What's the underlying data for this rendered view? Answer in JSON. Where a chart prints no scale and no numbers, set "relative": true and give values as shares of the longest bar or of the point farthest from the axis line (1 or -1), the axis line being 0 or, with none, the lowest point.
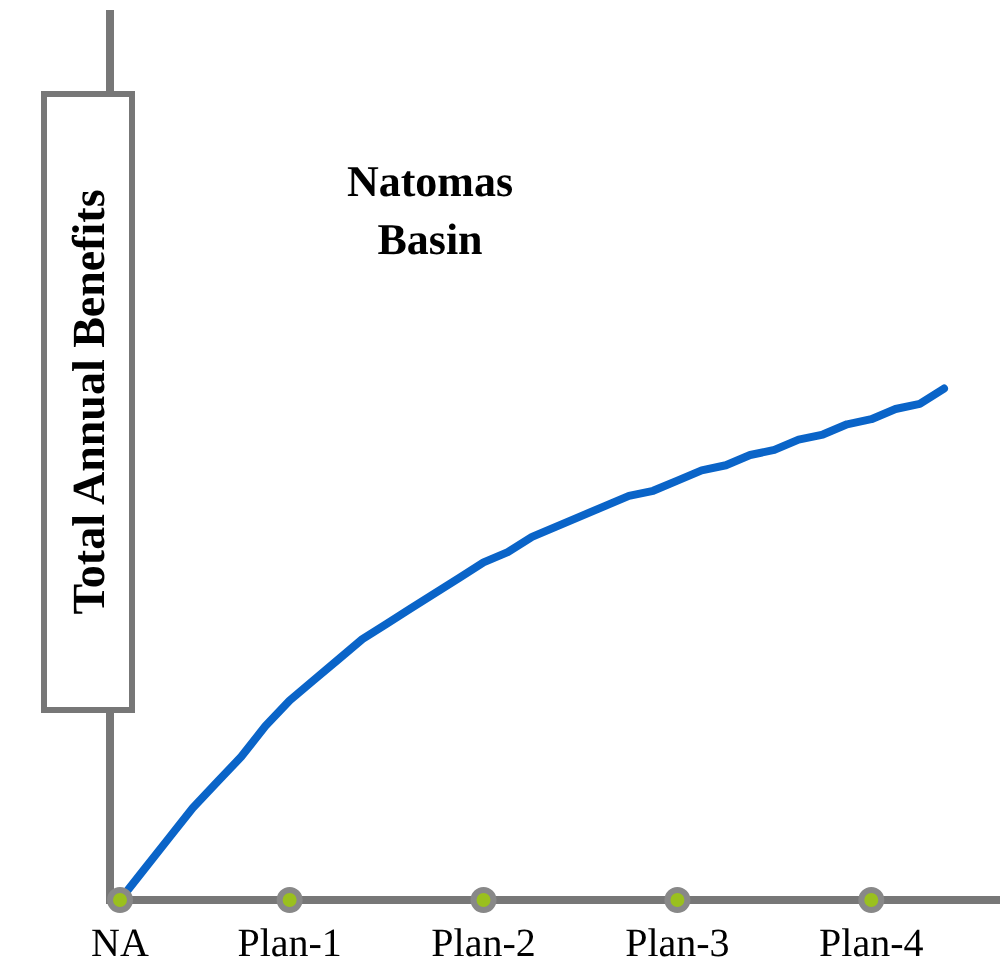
{
  "chart_data": {
    "type": "line",
    "title": "Natomas Basin",
    "ylabel": "Total Annual Benefits",
    "relative": true,
    "categories": [
      "NA",
      null,
      null,
      null,
      null,
      null,
      null,
      "Plan-1",
      null,
      null,
      null,
      null,
      null,
      null,
      null,
      "Plan-2",
      null,
      null,
      null,
      null,
      null,
      null,
      null,
      "Plan-3",
      null,
      null,
      null,
      null,
      null,
      null,
      null,
      "Plan-4",
      null,
      null,
      null
    ],
    "series": [
      {
        "color": "#0a64c8",
        "values": [
          0,
          0.06,
          0.12,
          0.18,
          0.23,
          0.28,
          0.34,
          0.39,
          0.43,
          0.47,
          0.51,
          0.54,
          0.57,
          0.6,
          0.63,
          0.66,
          0.68,
          0.71,
          0.73,
          0.75,
          0.77,
          0.79,
          0.8,
          0.82,
          0.84,
          0.85,
          0.87,
          0.88,
          0.9,
          0.91,
          0.93,
          0.94,
          0.96,
          0.97,
          1
        ]
      },
      {
        "type": "scatter",
        "color": "#9ac01e",
        "values": [
          0,
          null,
          null,
          null,
          null,
          null,
          null,
          0,
          null,
          null,
          null,
          null,
          null,
          null,
          null,
          0,
          null,
          null,
          null,
          null,
          null,
          null,
          null,
          0,
          null,
          null,
          null,
          null,
          null,
          null,
          null,
          0,
          null,
          null,
          null
        ]
      }
    ],
    "grid": false
  }
}
